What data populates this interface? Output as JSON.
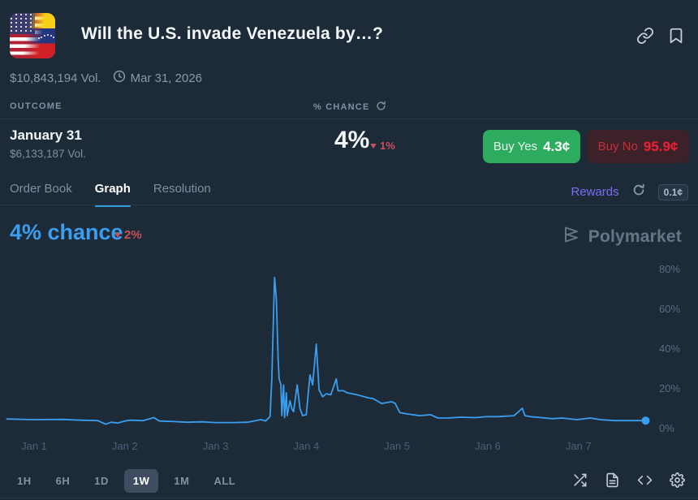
{
  "header": {
    "title": "Will the U.S. invade Venezuela by…?",
    "volume": "$10,843,194 Vol.",
    "end_date": "Mar 31, 2026"
  },
  "outcome_table": {
    "col_outcome": "OUTCOME",
    "col_chance": "% CHANCE",
    "row": {
      "name": "January 31",
      "volume": "$6,133,187 Vol.",
      "chance": "4%",
      "change_down": "1%",
      "buy_yes_label": "Buy Yes",
      "buy_yes_price": "4.3¢",
      "buy_no_label": "Buy No",
      "buy_no_price": "95.9¢"
    }
  },
  "tabs": {
    "items": [
      "Order Book",
      "Graph",
      "Resolution"
    ],
    "active": "Graph",
    "rewards_label": "Rewards",
    "fee": "0.1¢"
  },
  "chart_header": {
    "chance": "4% chance",
    "change_down": "2%",
    "watermark": "Polymarket"
  },
  "chart_data": {
    "type": "line",
    "title": "January 31 — % chance over time",
    "x_unit": "days since Jan 1 00:00",
    "ylabel": "% chance",
    "ylim": [
      0,
      100
    ],
    "grid": false,
    "legend": "none",
    "y_ticks": [
      0,
      20,
      40,
      60,
      80
    ],
    "x_ticks": [
      {
        "label": "Jan 1",
        "day": 0
      },
      {
        "label": "Jan 2",
        "day": 1
      },
      {
        "label": "Jan 3",
        "day": 2
      },
      {
        "label": "Jan 4",
        "day": 3
      },
      {
        "label": "Jan 5",
        "day": 4
      },
      {
        "label": "Jan 6",
        "day": 5
      },
      {
        "label": "Jan 7",
        "day": 6
      }
    ],
    "line_color": "#3b9ded",
    "end_value_pct": 4,
    "points": [
      [
        -0.3,
        4.8
      ],
      [
        0.0,
        4.5
      ],
      [
        0.3,
        4.6
      ],
      [
        0.52,
        4.2
      ],
      [
        0.7,
        4.0
      ],
      [
        0.79,
        2.2
      ],
      [
        0.85,
        3.2
      ],
      [
        0.92,
        2.8
      ],
      [
        1.0,
        3.8
      ],
      [
        1.06,
        4.2
      ],
      [
        1.2,
        4.0
      ],
      [
        1.32,
        5.5
      ],
      [
        1.38,
        3.8
      ],
      [
        1.55,
        3.5
      ],
      [
        1.68,
        3.2
      ],
      [
        1.85,
        3.4
      ],
      [
        2.0,
        3.0
      ],
      [
        2.2,
        3.0
      ],
      [
        2.35,
        3.2
      ],
      [
        2.5,
        4.5
      ],
      [
        2.55,
        3.8
      ],
      [
        2.6,
        6.0
      ],
      [
        2.62,
        25.0
      ],
      [
        2.64,
        60.0
      ],
      [
        2.65,
        76.0
      ],
      [
        2.67,
        65.0
      ],
      [
        2.69,
        35.0
      ],
      [
        2.7,
        25.0
      ],
      [
        2.72,
        22.0
      ],
      [
        2.73,
        6.5
      ],
      [
        2.75,
        22.0
      ],
      [
        2.76,
        5.5
      ],
      [
        2.78,
        18.0
      ],
      [
        2.79,
        6.5
      ],
      [
        2.82,
        14.0
      ],
      [
        2.84,
        10.0
      ],
      [
        2.86,
        8.5
      ],
      [
        2.9,
        22.0
      ],
      [
        2.93,
        10.0
      ],
      [
        2.96,
        6.5
      ],
      [
        3.0,
        7.0
      ],
      [
        3.04,
        27.0
      ],
      [
        3.07,
        22.0
      ],
      [
        3.11,
        42.5
      ],
      [
        3.14,
        19.5
      ],
      [
        3.18,
        16.0
      ],
      [
        3.22,
        17.5
      ],
      [
        3.27,
        17.0
      ],
      [
        3.33,
        25.0
      ],
      [
        3.35,
        19.0
      ],
      [
        3.41,
        19.0
      ],
      [
        3.45,
        18.0
      ],
      [
        3.56,
        17.0
      ],
      [
        3.68,
        15.5
      ],
      [
        3.74,
        15.0
      ],
      [
        3.83,
        12.6
      ],
      [
        3.94,
        13.5
      ],
      [
        3.98,
        12.6
      ],
      [
        4.03,
        8.0
      ],
      [
        4.12,
        7.3
      ],
      [
        4.25,
        6.5
      ],
      [
        4.37,
        7.0
      ],
      [
        4.45,
        5.3
      ],
      [
        4.56,
        5.3
      ],
      [
        4.7,
        5.7
      ],
      [
        4.86,
        5.5
      ],
      [
        4.99,
        6.0
      ],
      [
        5.11,
        6.0
      ],
      [
        5.29,
        6.5
      ],
      [
        5.38,
        10.2
      ],
      [
        5.41,
        6.5
      ],
      [
        5.47,
        6.0
      ],
      [
        5.59,
        5.5
      ],
      [
        5.71,
        5.0
      ],
      [
        5.82,
        5.3
      ],
      [
        5.98,
        4.5
      ],
      [
        6.13,
        5.3
      ],
      [
        6.24,
        4.5
      ],
      [
        6.4,
        4.0
      ],
      [
        6.54,
        4.0
      ],
      [
        6.74,
        4.0
      ]
    ]
  },
  "toolbar": {
    "ranges": [
      "1H",
      "6H",
      "1D",
      "1W",
      "1M",
      "ALL"
    ],
    "active": "1W"
  },
  "colors": {
    "background": "#1d2b39",
    "accent_blue": "#3b9ded",
    "buy_yes_green": "#2dab5e",
    "buy_no_red": "#f01f33",
    "down_red": "#c9505c",
    "rewards_purple": "#7e6af2"
  }
}
